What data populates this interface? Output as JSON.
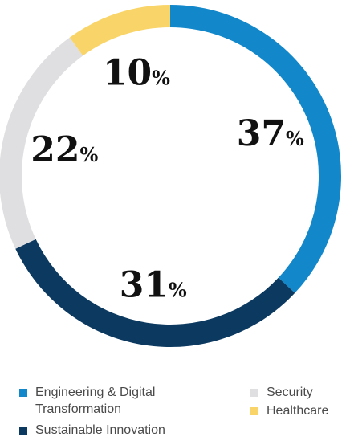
{
  "chart_data": {
    "type": "pie",
    "style": "donut",
    "start_angle_deg": 0,
    "direction": "clockwise",
    "slices": [
      {
        "label": "Engineering & Digital Transformation",
        "value": 37,
        "display": "37",
        "unit": "%",
        "color": "#1288CB"
      },
      {
        "label": "Sustainable Innovation",
        "value": 31,
        "display": "31",
        "unit": "%",
        "color": "#0B3960"
      },
      {
        "label": "Security",
        "value": 22,
        "display": "22",
        "unit": "%",
        "color": "#DFDFE1"
      },
      {
        "label": "Healthcare",
        "value": 10,
        "display": "10",
        "unit": "%",
        "color": "#F9D569"
      }
    ]
  },
  "legend": {
    "items": [
      {
        "label": "Engineering & Digital Transformation",
        "color": "#1288CB"
      },
      {
        "label": "Sustainable Innovation",
        "color": "#0B3960"
      },
      {
        "label": "Security",
        "color": "#DFDFE1"
      },
      {
        "label": "Healthcare",
        "color": "#F9D569"
      }
    ]
  }
}
